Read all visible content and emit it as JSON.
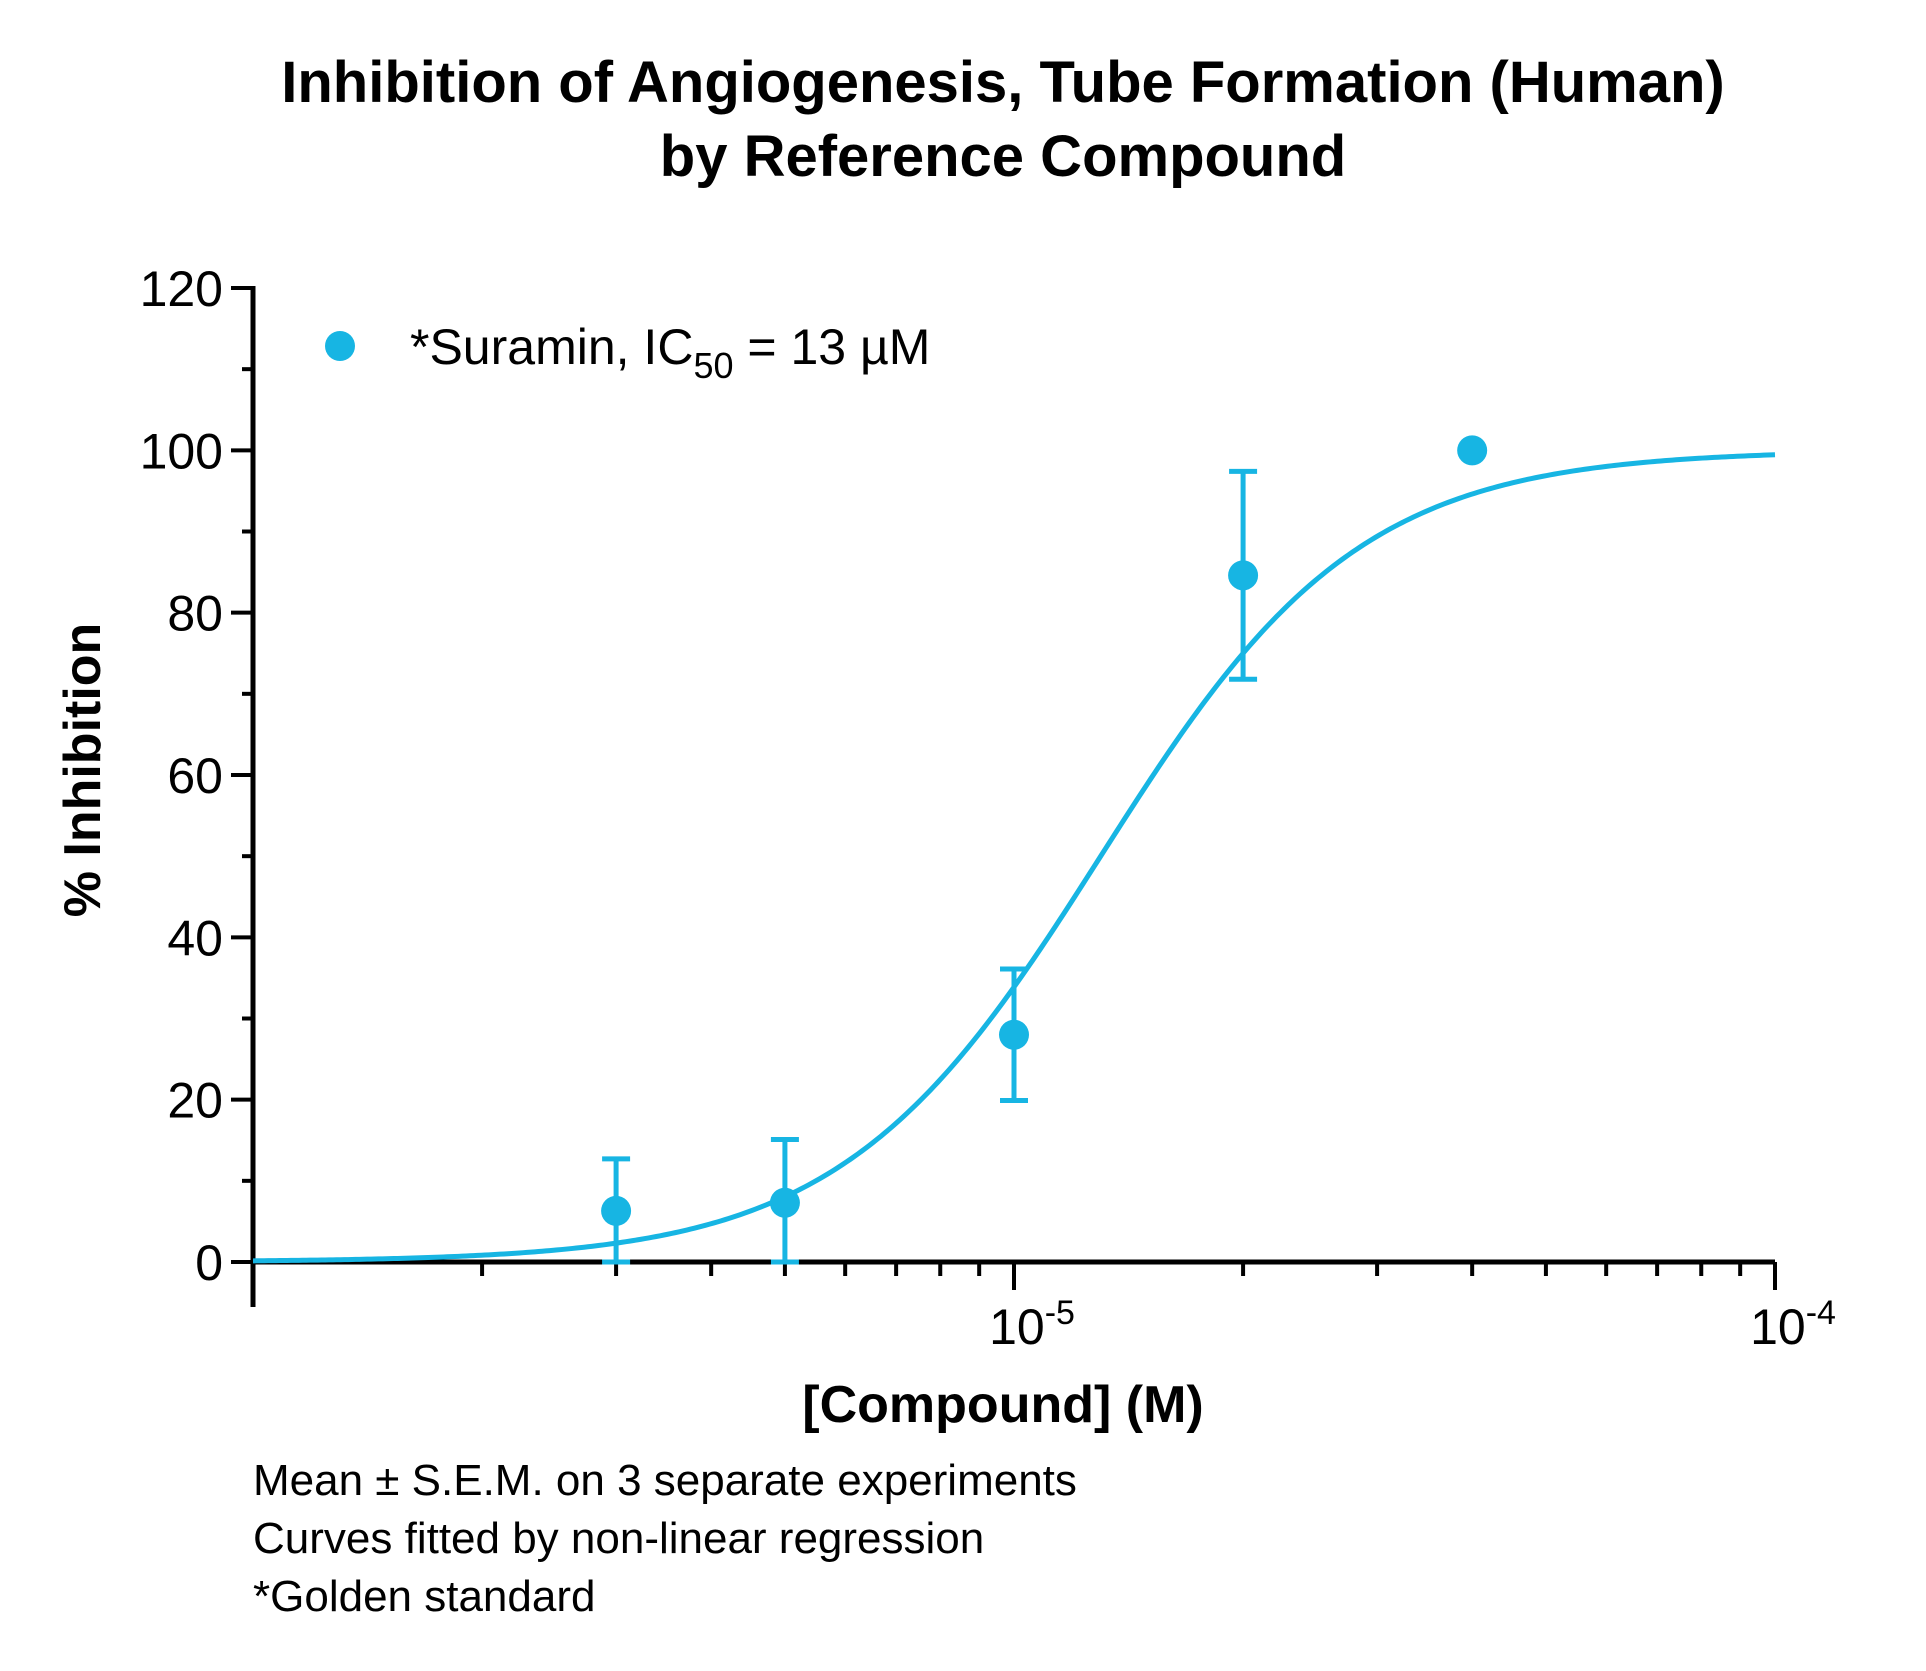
{
  "chart_data": {
    "type": "scatter",
    "title": [
      "Inhibition of Angiogenesis, Tube Formation (Human)",
      "by Reference Compound"
    ],
    "xlabel": "[Compound] (M)",
    "ylabel": "% Inhibition",
    "x_scale": "log10",
    "xlim": [
      1e-06,
      0.0001
    ],
    "ylim": [
      0,
      120
    ],
    "y_ticks": [
      0,
      20,
      40,
      60,
      80,
      100,
      120
    ],
    "y_tick_labels": [
      "0",
      "20",
      "40",
      "60",
      "80",
      "100",
      "120"
    ],
    "x_tick_labels": [
      {
        "value": 1e-05,
        "base": "10",
        "exp": "-5"
      },
      {
        "value": 0.0001,
        "base": "10",
        "exp": "-4"
      }
    ],
    "grid": false,
    "legend_position": "top-left",
    "colors": {
      "series": "#17b5e3"
    },
    "series": [
      {
        "name": "*Suramin, IC50 = 13 µM",
        "legend_parts": {
          "pre": "*Suramin, IC",
          "sub": "50",
          "post": " = 13 µM"
        },
        "points": [
          {
            "x": 3e-06,
            "y": 6.3,
            "err": 6.4
          },
          {
            "x": 5e-06,
            "y": 7.3,
            "err": 7.8
          },
          {
            "x": 1e-05,
            "y": 28.0,
            "err": 8.1
          },
          {
            "x": 2e-05,
            "y": 84.6,
            "err": 12.8
          },
          {
            "x": 4e-05,
            "y": 100.0,
            "err": 0
          }
        ],
        "fit": {
          "model": "four-parameter logistic",
          "bottom": 0,
          "top": 100,
          "ic50": 1.3e-05,
          "hill": 2.55
        }
      }
    ],
    "footnotes": [
      "Mean ± S.E.M. on 3 separate experiments",
      "Curves fitted by non-linear regression",
      "*Golden standard"
    ]
  }
}
